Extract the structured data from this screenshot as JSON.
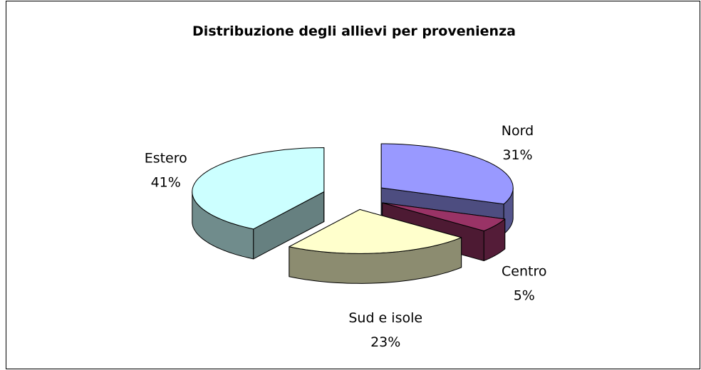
{
  "chart_data": {
    "type": "pie",
    "title": "Distribuzione degli allievi per provenienza",
    "categories": [
      "Nord",
      "Centro",
      "Sud e isole",
      "Estero"
    ],
    "values": [
      31,
      5,
      23,
      41
    ],
    "value_labels": [
      "31%",
      "5%",
      "23%",
      "41%"
    ],
    "colors": [
      "#9999ff",
      "#993366",
      "#ffffcc",
      "#ccffff"
    ]
  }
}
